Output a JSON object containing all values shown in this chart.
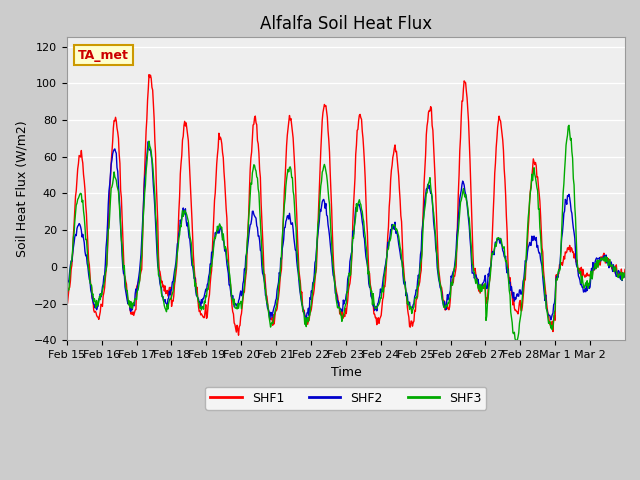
{
  "title": "Alfalfa Soil Heat Flux",
  "ylabel": "Soil Heat Flux (W/m2)",
  "xlabel": "Time",
  "ylim": [
    -40,
    125
  ],
  "yticks": [
    -40,
    -20,
    0,
    20,
    40,
    60,
    80,
    100,
    120
  ],
  "colors": {
    "SHF1": "#ff0000",
    "SHF2": "#0000cc",
    "SHF3": "#00aa00"
  },
  "legend_labels": [
    "SHF1",
    "SHF2",
    "SHF3"
  ],
  "annotation_text": "TA_met",
  "annotation_color": "#cc0000",
  "annotation_bg": "#ffffcc",
  "annotation_border": "#cc9900",
  "fig_bg": "#cccccc",
  "plot_bg": "#eeeeee",
  "title_fontsize": 12,
  "axis_fontsize": 9,
  "tick_fontsize": 8,
  "line_width": 1.0,
  "xtick_labels": [
    "Feb 15",
    "Feb 16",
    "Feb 17",
    "Feb 18",
    "Feb 19",
    "Feb 20",
    "Feb 21",
    "Feb 22",
    "Feb 23",
    "Feb 24",
    "Feb 25",
    "Feb 26",
    "Feb 27",
    "Feb 28",
    "Mar 1",
    "Mar 2"
  ],
  "xtick_positions": [
    0,
    1,
    2,
    3,
    4,
    5,
    6,
    7,
    8,
    9,
    10,
    11,
    12,
    13,
    14,
    15
  ],
  "days": 16,
  "pts_per_day": 48,
  "daily_peaks_shf1": [
    62,
    80,
    104,
    78,
    69,
    81,
    81,
    89,
    83,
    65,
    87,
    101,
    81,
    58,
    10,
    5
  ],
  "daily_peaks_shf2": [
    22,
    65,
    65,
    30,
    22,
    28,
    28,
    35,
    33,
    22,
    45,
    45,
    15,
    15,
    38,
    5
  ],
  "daily_peaks_shf3": [
    40,
    50,
    65,
    30,
    22,
    55,
    55,
    55,
    35,
    22,
    45,
    42,
    15,
    51,
    75,
    5
  ],
  "daily_troughs_shf1": [
    -27,
    -26,
    -14,
    -27,
    -35,
    -30,
    -30,
    -27,
    -30,
    -32,
    -22,
    -12,
    -25,
    -32,
    -5,
    -5
  ],
  "daily_troughs_shf2": [
    -22,
    -23,
    -20,
    -20,
    -22,
    -27,
    -27,
    -23,
    -22,
    -22,
    -20,
    -10,
    -18,
    -28,
    -13,
    -5
  ],
  "daily_troughs_shf3": [
    -20,
    -22,
    -23,
    -23,
    -23,
    -30,
    -30,
    -27,
    -23,
    -23,
    -22,
    -12,
    -40,
    -33,
    -10,
    -5
  ]
}
